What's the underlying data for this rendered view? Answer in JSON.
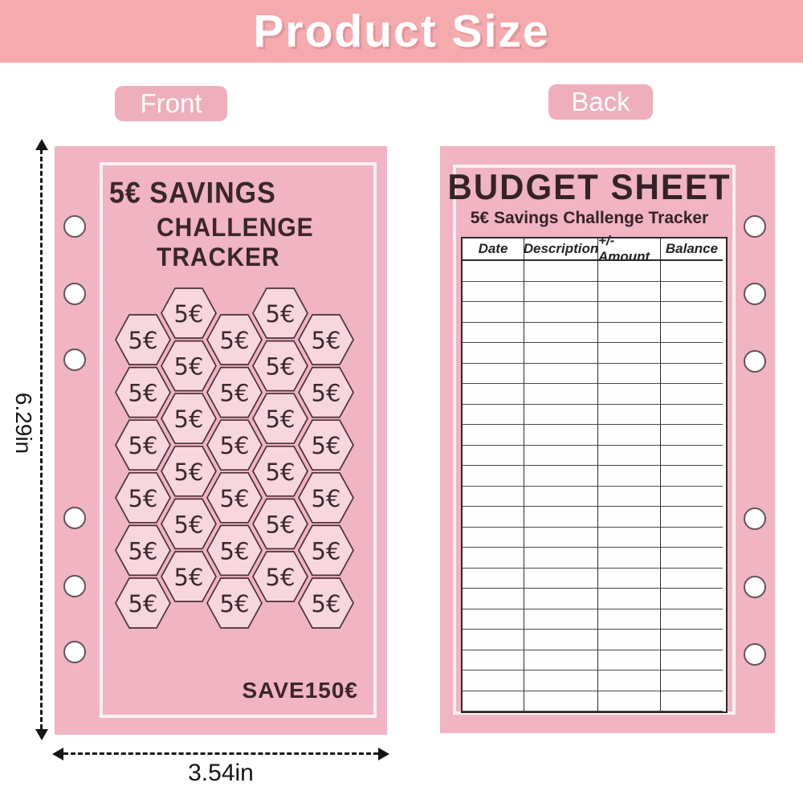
{
  "banner": {
    "title": "Product Size"
  },
  "labels": {
    "front": "Front",
    "back": "Back"
  },
  "front_card": {
    "title_line1": "5€ SAVINGS",
    "title_line2": "CHALLENGE TRACKER",
    "hex_label": "5€",
    "hex_count": 30,
    "save_label": "SAVE150€"
  },
  "back_card": {
    "title": "BUDGET SHEET",
    "subtitle": "5€ Savings Challenge Tracker",
    "table": {
      "headers": [
        "Date",
        "Description",
        "+/-Amount",
        "Balance"
      ],
      "empty_rows": 22
    }
  },
  "dimensions": {
    "height_label": "6.29in",
    "width_label": "3.54in"
  },
  "colors": {
    "banner_pink": "#f5abad",
    "tag_pink": "#efaebb",
    "card_pink": "#f0b4c2",
    "hex_fill_pink": "#f8d6de",
    "frame_white": "#fcf0f2",
    "dark_brown_text": "#3a262b",
    "table_line": "#2c2c2c",
    "arrow_black": "#161616"
  }
}
